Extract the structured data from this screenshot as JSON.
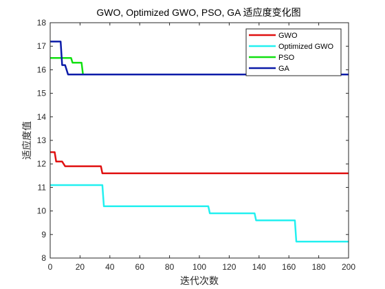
{
  "chart_data": {
    "type": "line",
    "title": "GWO, Optimized GWO, PSO, GA 适应度变化图",
    "xlabel": "迭代次数",
    "ylabel": "适应度值",
    "xlim": [
      0,
      200
    ],
    "ylim": [
      8,
      18
    ],
    "xticks": [
      0,
      20,
      40,
      60,
      80,
      100,
      120,
      140,
      160,
      180,
      200
    ],
    "yticks": [
      8,
      9,
      10,
      11,
      12,
      13,
      14,
      15,
      16,
      17,
      18
    ],
    "grid": false,
    "legend_position": "top-right",
    "series": [
      {
        "name": "GWO",
        "color": "#e01010",
        "points": [
          [
            0,
            12.5
          ],
          [
            3,
            12.5
          ],
          [
            4,
            12.1
          ],
          [
            8,
            12.1
          ],
          [
            10,
            11.9
          ],
          [
            34,
            11.9
          ],
          [
            35,
            11.6
          ],
          [
            200,
            11.6
          ]
        ]
      },
      {
        "name": "Optimized GWO",
        "color": "#22f0f0",
        "points": [
          [
            0,
            11.1
          ],
          [
            35,
            11.1
          ],
          [
            36,
            10.2
          ],
          [
            106,
            10.2
          ],
          [
            107,
            9.9
          ],
          [
            137,
            9.9
          ],
          [
            138,
            9.6
          ],
          [
            164,
            9.6
          ],
          [
            165,
            8.7
          ],
          [
            200,
            8.7
          ]
        ]
      },
      {
        "name": "PSO",
        "color": "#10e010",
        "points": [
          [
            0,
            16.5
          ],
          [
            14,
            16.5
          ],
          [
            15,
            16.3
          ],
          [
            21,
            16.3
          ],
          [
            22,
            15.8
          ]
        ]
      },
      {
        "name": "GA",
        "color": "#0a1aa8",
        "points": [
          [
            0,
            17.2
          ],
          [
            7,
            17.2
          ],
          [
            8,
            16.2
          ],
          [
            10,
            16.2
          ],
          [
            12,
            15.8
          ],
          [
            200,
            15.8
          ]
        ]
      }
    ]
  }
}
